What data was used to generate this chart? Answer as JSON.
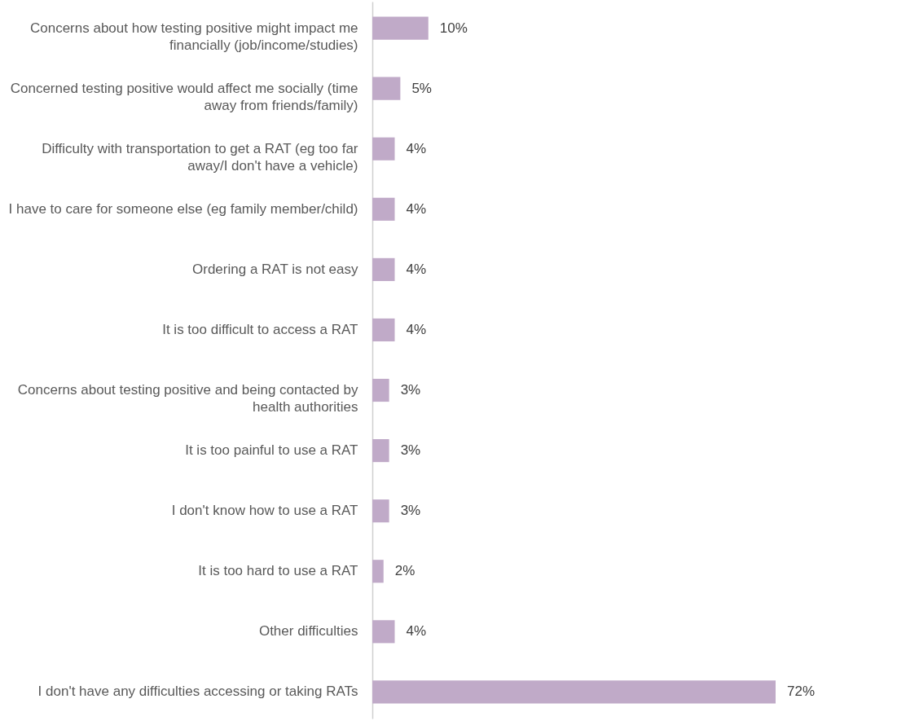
{
  "chart_data": {
    "type": "bar",
    "orientation": "horizontal",
    "categories": [
      "Concerns about how testing positive might impact me financially (job/income/studies)",
      "Concerned testing positive would affect me socially (time away from friends/family)",
      "Difficulty with transportation to get a RAT (eg too far away/I don't have a vehicle)",
      "I have to care for someone else (eg family member/child)",
      "Ordering a RAT is not easy",
      "It is too difficult to access a RAT",
      "Concerns about testing positive and being contacted by health authorities",
      "It is too painful to use a RAT",
      "I don't know how to use a RAT",
      "It is too hard to use a RAT",
      "Other difficulties",
      "I don't have any difficulties accessing or taking RATs"
    ],
    "values": [
      10,
      5,
      4,
      4,
      4,
      4,
      3,
      3,
      3,
      2,
      4,
      72
    ],
    "value_labels": [
      "10%",
      "5%",
      "4%",
      "4%",
      "4%",
      "4%",
      "3%",
      "3%",
      "3%",
      "2%",
      "4%",
      "72%"
    ],
    "color": "#c0aac8",
    "tick_labels": "y"
  }
}
